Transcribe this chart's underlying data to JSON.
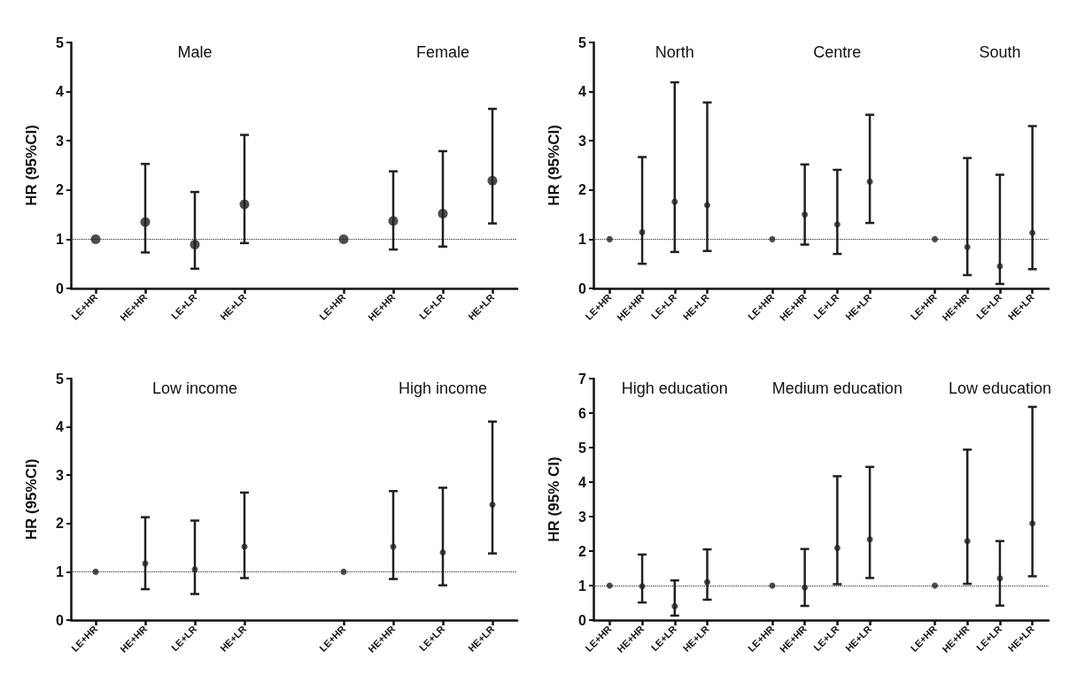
{
  "chart_data": [
    {
      "type": "scatter",
      "ylabel": "HR (95%CI)",
      "annotations": [
        "Male",
        "Female"
      ],
      "categories": [
        "LE+HR",
        "HE+HR",
        "LE+LR",
        "HE+LR",
        null,
        "LE+HR",
        "HE+HR",
        "LE+LR",
        "HE+LR"
      ],
      "values": [
        1,
        1.35,
        0.89,
        1.71,
        null,
        1,
        1.37,
        1.52,
        2.19
      ],
      "errors": [
        null,
        [
          0.73,
          2.53
        ],
        [
          0.4,
          1.96
        ],
        [
          0.92,
          3.12
        ],
        null,
        null,
        [
          0.79,
          2.38
        ],
        [
          0.85,
          2.79
        ],
        [
          1.32,
          3.65
        ]
      ],
      "color": "#231f20",
      "marker": "circle",
      "ylim": [
        0,
        5
      ],
      "yticks": [
        0,
        1,
        2,
        3,
        4,
        5
      ],
      "grid": false,
      "ref_lines": [
        {
          "axis": "y",
          "value": 1,
          "line_style": "dotted"
        }
      ]
    },
    {
      "type": "scatter",
      "ylabel": "HR (95%CI)",
      "annotations": [
        "North",
        "Centre",
        "South"
      ],
      "categories": [
        "LE+HR",
        "HE+HR",
        "LE+LR",
        "HE+LR",
        null,
        "LE+HR",
        "HE+HR",
        "LE+LR",
        "HE+LR",
        null,
        "LE+HR",
        "HE+HR",
        "LE+LR",
        "HE+LR"
      ],
      "values": [
        1,
        1.14,
        1.76,
        1.69,
        null,
        1,
        1.5,
        1.3,
        2.17,
        null,
        1,
        0.84,
        0.45,
        1.13
      ],
      "errors": [
        null,
        [
          0.5,
          2.67
        ],
        [
          0.74,
          4.19
        ],
        [
          0.76,
          3.78
        ],
        null,
        null,
        [
          0.89,
          2.52
        ],
        [
          0.7,
          2.41
        ],
        [
          1.33,
          3.53
        ],
        null,
        null,
        [
          0.27,
          2.65
        ],
        [
          0.09,
          2.31
        ],
        [
          0.39,
          3.3
        ]
      ],
      "color": "#231f20",
      "marker": "circle",
      "ylim": [
        0,
        5
      ],
      "yticks": [
        0,
        1,
        2,
        3,
        4,
        5
      ],
      "grid": false,
      "ref_lines": [
        {
          "axis": "y",
          "value": 1,
          "line_style": "dotted"
        }
      ]
    },
    {
      "type": "scatter",
      "ylabel": "HR (95%CI)",
      "annotations": [
        "Low income",
        "High income"
      ],
      "categories": [
        "LE+HR",
        "HE+HR",
        "LE+LR",
        "HE+LR",
        null,
        "LE+HR",
        "HE+HR",
        "LE+LR",
        "HE+LR"
      ],
      "values": [
        1,
        1.17,
        1.05,
        1.52,
        null,
        1,
        1.52,
        1.4,
        2.39
      ],
      "errors": [
        null,
        [
          0.64,
          2.13
        ],
        [
          0.54,
          2.06
        ],
        [
          0.87,
          2.64
        ],
        null,
        null,
        [
          0.85,
          2.67
        ],
        [
          0.72,
          2.74
        ],
        [
          1.38,
          4.11
        ]
      ],
      "color": "#231f20",
      "marker": "circle",
      "ylim": [
        0,
        5
      ],
      "yticks": [
        0,
        1,
        2,
        3,
        4,
        5
      ],
      "grid": false,
      "ref_lines": [
        {
          "axis": "y",
          "value": 1,
          "line_style": "dotted"
        }
      ]
    },
    {
      "type": "scatter",
      "ylabel": "HR (95% CI)",
      "annotations": [
        "High education",
        "Medium education",
        "Low education"
      ],
      "categories": [
        "LE+HR",
        "HE+HR",
        "LE+LR",
        "HE+LR",
        null,
        "LE+HR",
        "HE+HR",
        "LE+LR",
        "HE+LR",
        null,
        "LE+HR",
        "HE+HR",
        "LE+LR",
        "HE+LR"
      ],
      "values": [
        1,
        0.98,
        0.4,
        1.1,
        null,
        1,
        0.94,
        2.09,
        2.34,
        null,
        1,
        2.29,
        1.21,
        2.8
      ],
      "errors": [
        null,
        [
          0.51,
          1.9
        ],
        [
          0.13,
          1.15
        ],
        [
          0.59,
          2.05
        ],
        null,
        null,
        [
          0.41,
          2.06
        ],
        [
          1.04,
          4.17
        ],
        [
          1.22,
          4.44
        ],
        null,
        null,
        [
          1.05,
          4.94
        ],
        [
          0.42,
          2.29
        ],
        [
          1.27,
          6.18
        ]
      ],
      "color": "#231f20",
      "marker": "circle",
      "ylim": [
        0,
        7
      ],
      "yticks": [
        0,
        1,
        2,
        3,
        4,
        5,
        6,
        7
      ],
      "grid": false,
      "ref_lines": [
        {
          "axis": "y",
          "value": 1,
          "line_style": "dotted"
        }
      ]
    }
  ]
}
